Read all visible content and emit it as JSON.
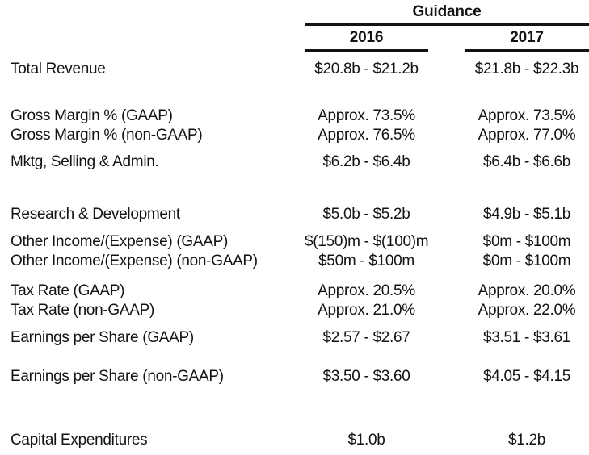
{
  "colors": {
    "background": "#ffffff",
    "text": "#131313",
    "rule": "#131313"
  },
  "header": {
    "group_title": "Guidance",
    "year_left": "2016",
    "year_right": "2017"
  },
  "chart_data": {
    "type": "table",
    "title": "Guidance",
    "columns": [
      "",
      "2016",
      "2017"
    ],
    "rows": [
      [
        "Total Revenue",
        "$20.8b - $21.2b",
        "$21.8b - $22.3b"
      ],
      [
        "Gross Margin % (GAAP)",
        "Approx. 73.5%",
        "Approx. 73.5%"
      ],
      [
        "Gross Margin % (non-GAAP)",
        "Approx. 76.5%",
        "Approx. 77.0%"
      ],
      [
        "Mktg, Selling & Admin.",
        "$6.2b - $6.4b",
        "$6.4b - $6.6b"
      ],
      [
        "Research & Development",
        "$5.0b - $5.2b",
        "$4.9b - $5.1b"
      ],
      [
        "Other Income/(Expense) (GAAP)",
        "$(150)m - $(100)m",
        "$0m - $100m"
      ],
      [
        "Other Income/(Expense) (non-GAAP)",
        "$50m - $100m",
        "$0m - $100m"
      ],
      [
        "Tax Rate (GAAP)",
        "Approx. 20.5%",
        "Approx. 20.0%"
      ],
      [
        "Tax Rate (non-GAAP)",
        "Approx. 21.0%",
        "Approx. 22.0%"
      ],
      [
        "Earnings per Share (GAAP)",
        "$2.57 - $2.67",
        "$3.51 - $3.61"
      ],
      [
        "Earnings per Share (non-GAAP)",
        "$3.50 - $3.60",
        "$4.05 - $4.15"
      ],
      [
        "Capital Expenditures",
        "$1.0b",
        "$1.2b"
      ]
    ]
  }
}
